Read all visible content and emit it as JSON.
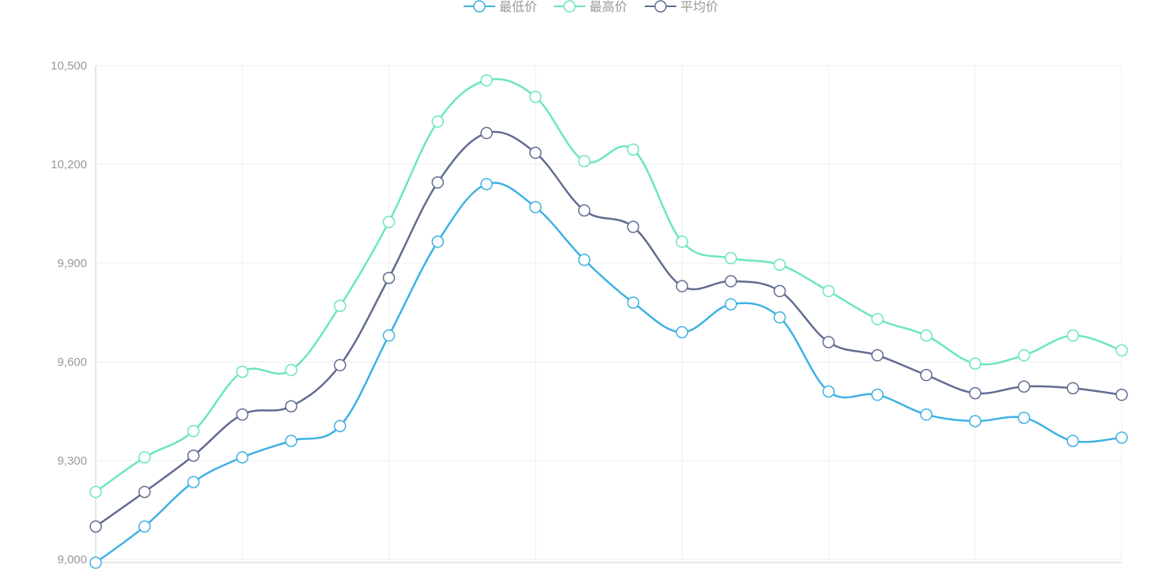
{
  "chart_data": {
    "type": "line",
    "smooth": true,
    "title": "",
    "xlabel": "",
    "ylabel": "",
    "ylim": [
      9000,
      10500
    ],
    "y_ticks": [
      9000,
      9300,
      9600,
      9900,
      10200,
      10500
    ],
    "y_tick_labels": [
      "9,000",
      "9,300",
      "9,600",
      "9,900",
      "10,200",
      "10,500"
    ],
    "x_count": 22,
    "grid": true,
    "legend_position": "top-center",
    "series": [
      {
        "name": "最低价",
        "color": "#3fb1e3",
        "values": [
          8990,
          9100,
          9235,
          9310,
          9360,
          9405,
          9680,
          9965,
          10140,
          10070,
          9910,
          9780,
          9690,
          9775,
          9735,
          9510,
          9500,
          9440,
          9420,
          9430,
          9360,
          9370
        ]
      },
      {
        "name": "最高价",
        "color": "#6be6c1",
        "values": [
          9205,
          9310,
          9390,
          9570,
          9575,
          9770,
          10025,
          10330,
          10455,
          10405,
          10210,
          10245,
          9965,
          9915,
          9895,
          9815,
          9730,
          9680,
          9595,
          9620,
          9680,
          9635
        ]
      },
      {
        "name": "平均价",
        "color": "#626c91",
        "values": [
          9100,
          9205,
          9315,
          9440,
          9465,
          9590,
          9855,
          10145,
          10295,
          10235,
          10060,
          10010,
          9830,
          9845,
          9815,
          9660,
          9620,
          9560,
          9505,
          9525,
          9520,
          9500
        ]
      }
    ]
  }
}
